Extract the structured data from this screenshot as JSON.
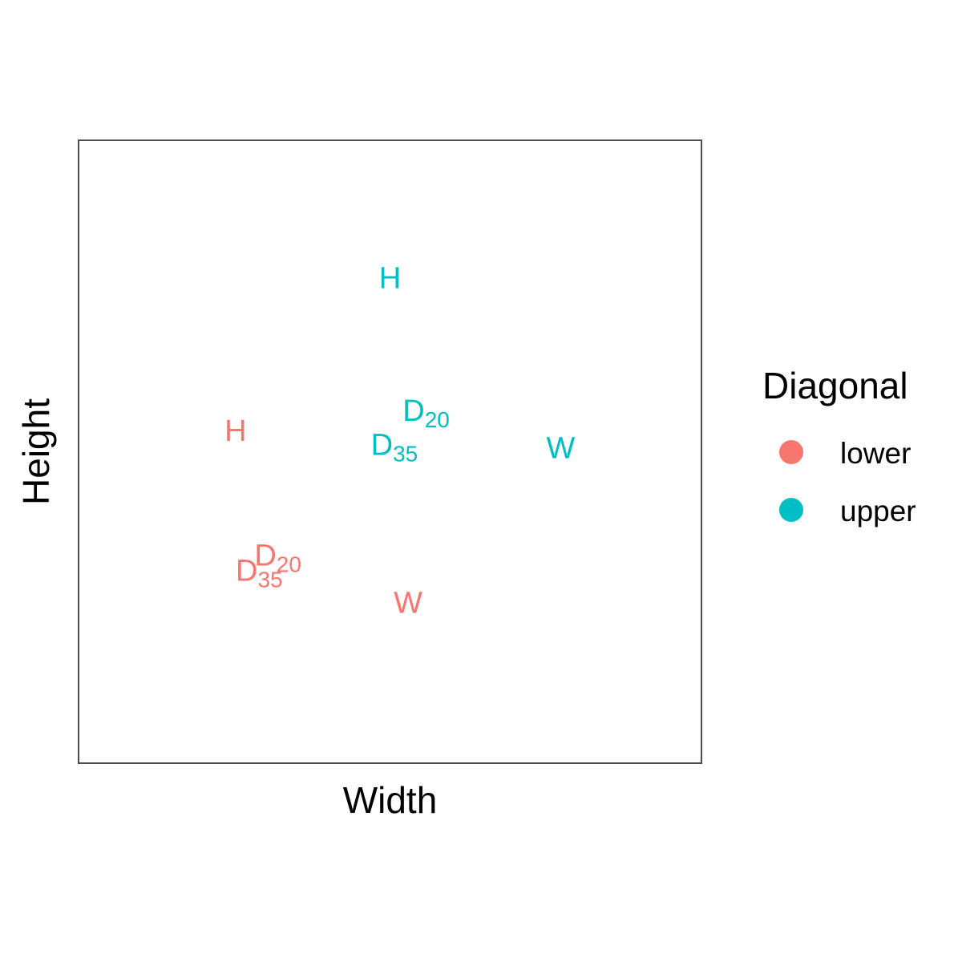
{
  "chart_data": {
    "type": "scatter",
    "xlabel": "Width",
    "ylabel": "Height",
    "xlim": [
      0,
      1
    ],
    "ylim": [
      0,
      1
    ],
    "grid": false,
    "legend": {
      "title": "Diagonal",
      "position": "right",
      "entries": [
        {
          "label": "lower",
          "color": "#F8766D"
        },
        {
          "label": "upper",
          "color": "#00BFC4"
        }
      ]
    },
    "series": [
      {
        "name": "lower",
        "color": "#F8766D",
        "points": [
          {
            "label": "H",
            "sub": "",
            "x": 0.252,
            "y": 0.533
          },
          {
            "label": "D",
            "sub": "20",
            "x": 0.32,
            "y": 0.333
          },
          {
            "label": "D",
            "sub": "35",
            "x": 0.29,
            "y": 0.308
          },
          {
            "label": "W",
            "sub": "",
            "x": 0.529,
            "y": 0.257
          }
        ]
      },
      {
        "name": "upper",
        "color": "#00BFC4",
        "points": [
          {
            "label": "H",
            "sub": "",
            "x": 0.5,
            "y": 0.778
          },
          {
            "label": "D",
            "sub": "20",
            "x": 0.558,
            "y": 0.565
          },
          {
            "label": "D",
            "sub": "35",
            "x": 0.507,
            "y": 0.51
          },
          {
            "label": "W",
            "sub": "",
            "x": 0.774,
            "y": 0.505
          }
        ]
      }
    ]
  }
}
